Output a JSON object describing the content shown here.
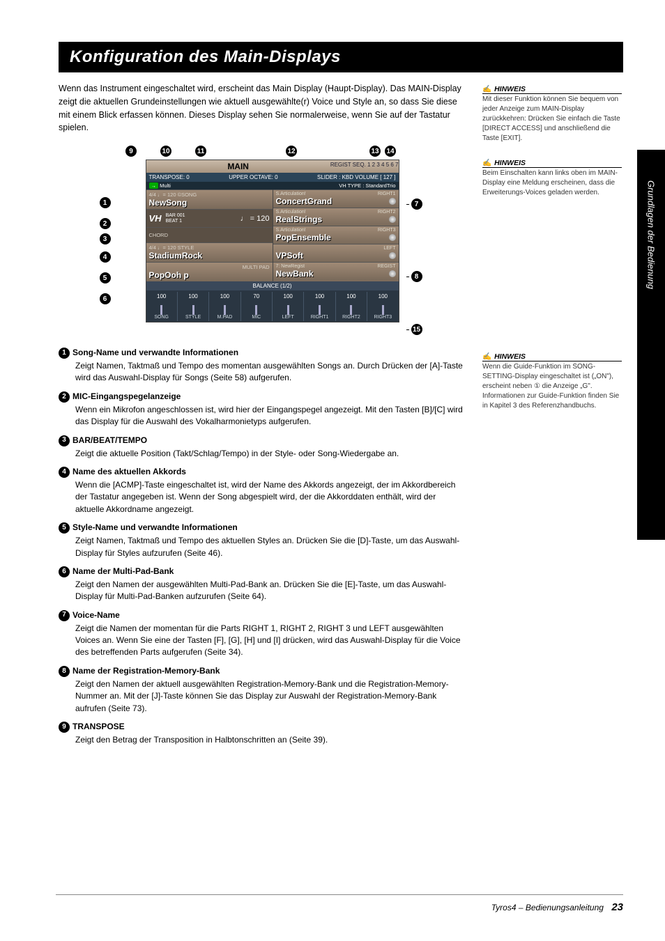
{
  "sideTab": "Grundlagen der Bedienung",
  "title": "Konfiguration des Main-Displays",
  "intro": "Wenn das Instrument eingeschaltet wird, erscheint das Main Display (Haupt-Display). Das MAIN-Display zeigt die aktuellen Grundeinstellungen wie aktuell ausgewählte(r) Voice und Style an, so dass Sie diese mit einem Blick erfassen können. Dieses Display sehen Sie normalerweise, wenn Sie auf der Tastatur spielen.",
  "screen": {
    "title": "MAIN",
    "registSeq": "REGIST SEQ. 1 2 3 4 5 6 7",
    "transpose": "TRANSPOSE:  0",
    "upperOctave": "UPPER OCTAVE:  0",
    "sliderKbd": "SLIDER : KBD VOLUME   [   127 ]",
    "vhType": "VH TYPE : StandardTrio",
    "multi": "Multi",
    "song": {
      "sub": "4/4     ♩= 120  ©SONG",
      "name": "NewSong"
    },
    "mic": {
      "label": "VH",
      "bar": "BAR   001",
      "beat": "BEAT   1",
      "tempo": "♩ = 120"
    },
    "chord": {
      "label": "CHORD",
      "value": ""
    },
    "style": {
      "sub": "4/4     ♩= 120  STYLE",
      "name": "StadiumRock"
    },
    "multipad": {
      "sub": "MULTI PAD",
      "name": "PopOoh p"
    },
    "voices": {
      "r1": {
        "sub": "S.Articulation!",
        "label": "RIGHT1",
        "name": "ConcertGrand"
      },
      "r2": {
        "sub": "S.Articulation!",
        "label": "RIGHT2",
        "name": "RealStrings"
      },
      "r3": {
        "sub": "S.Articulation!",
        "label": "RIGHT3",
        "name": "PopEnsemble"
      },
      "left": {
        "label": "LEFT",
        "name": "VPSoft"
      }
    },
    "regist": {
      "sub": "7: NewRegist",
      "label": "REGIST",
      "name": "NewBank"
    },
    "balance": {
      "title": "BALANCE (1/2)",
      "items": [
        {
          "v": "100",
          "n": "SONG"
        },
        {
          "v": "100",
          "n": "STYLE"
        },
        {
          "v": "100",
          "n": "M.PAD"
        },
        {
          "v": "70",
          "n": "MIC"
        },
        {
          "v": "100",
          "n": "LEFT"
        },
        {
          "v": "100",
          "n": "RIGHT1"
        },
        {
          "v": "100",
          "n": "RIGHT2"
        },
        {
          "v": "100",
          "n": "RIGHT3"
        }
      ]
    }
  },
  "topNums": [
    "9",
    "10",
    "11",
    "12",
    "13",
    "14"
  ],
  "leftNums": [
    "1",
    "2",
    "3",
    "4",
    "5",
    "6"
  ],
  "rightCallouts": {
    "a": "7",
    "b": "8",
    "c": "15"
  },
  "annotations": [
    {
      "n": "1",
      "head": "Song-Name und verwandte Informationen",
      "body": "Zeigt Namen, Taktmaß und Tempo des momentan ausgewählten Songs an. Durch Drücken der [A]-Taste wird das Auswahl-Display für Songs (Seite 58) aufgerufen."
    },
    {
      "n": "2",
      "head": "MIC-Eingangspegelanzeige",
      "body": "Wenn ein Mikrofon angeschlossen ist, wird hier der Eingangspegel angezeigt. Mit den Tasten [B]/[C] wird das Display für die Auswahl des Vokalharmonietyps aufgerufen."
    },
    {
      "n": "3",
      "head": "BAR/BEAT/TEMPO",
      "body": "Zeigt die aktuelle Position (Takt/Schlag/Tempo) in der Style- oder Song-Wiedergabe an."
    },
    {
      "n": "4",
      "head": "Name des aktuellen Akkords",
      "body": "Wenn die [ACMP]-Taste eingeschaltet ist, wird der Name des Akkords angezeigt, der im Akkordbereich der Tastatur angegeben ist.\nWenn der Song abgespielt wird, der die Akkorddaten enthält, wird der aktuelle Akkordname angezeigt."
    },
    {
      "n": "5",
      "head": "Style-Name und verwandte Informationen",
      "body": "Zeigt Namen, Taktmaß und Tempo des aktuellen Styles an. Drücken Sie die [D]-Taste, um das Auswahl-Display für Styles aufzurufen (Seite 46)."
    },
    {
      "n": "6",
      "head": "Name der Multi-Pad-Bank",
      "body": "Zeigt den Namen der ausgewählten Multi-Pad-Bank an. Drücken Sie die [E]-Taste, um das Auswahl-Display für Multi-Pad-Banken aufzurufen (Seite 64)."
    },
    {
      "n": "7",
      "head": "Voice-Name",
      "body": "Zeigt die Namen der momentan für die Parts RIGHT 1, RIGHT 2, RIGHT 3 und LEFT ausgewählten Voices an.\nWenn Sie eine der Tasten [F], [G], [H] und [I] drücken, wird das Auswahl-Display für die Voice des betreffenden Parts aufgerufen (Seite 34)."
    },
    {
      "n": "8",
      "head": "Name der Registration-Memory-Bank",
      "body": "Zeigt den Namen der aktuell ausgewählten Registration-Memory-Bank und die Registration-Memory-Nummer an.\nMit der [J]-Taste können Sie das Display zur Auswahl der Registration-Memory-Bank aufrufen (Seite 73)."
    },
    {
      "n": "9",
      "head": "TRANSPOSE",
      "body": "Zeigt den Betrag der Transposition in Halbtonschritten an (Seite 39)."
    }
  ],
  "notes": {
    "label": "HINWEIS",
    "n1": "Mit dieser Funktion können Sie bequem von jeder Anzeige zum MAIN-Display zurückkehren: Drücken Sie einfach die Taste [DIRECT ACCESS] und anschließend die Taste [EXIT].",
    "n2": "Beim Einschalten kann links oben im MAIN-Display eine Meldung erscheinen, dass die Erweiterungs-Voices geladen werden.",
    "n3": "Wenn die Guide-Funktion im SONG-SETTING-Display eingeschaltet ist („ON\"), erscheint neben ① die Anzeige „G\". Informationen zur Guide-Funktion finden Sie in Kapitel 3 des Referenzhandbuchs."
  },
  "footer": {
    "text": "Tyros4 – Bedienungsanleitung",
    "page": "23"
  }
}
